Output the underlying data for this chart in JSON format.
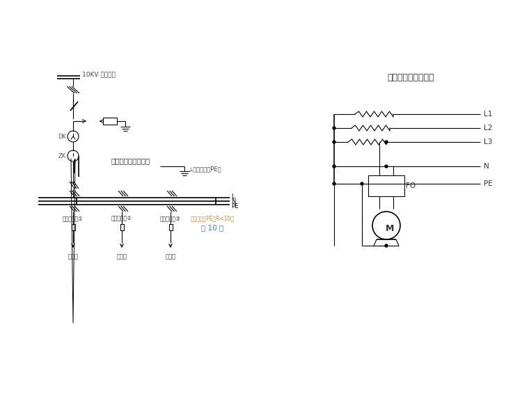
{
  "bg_color": "#ffffff",
  "line_color": "#000000",
  "orange_color": "#d4863c",
  "blue_color": "#4472c4",
  "title_right": "漏电保护器接线方式",
  "label_10kv": "10KV 电源进线",
  "label_zdpx": "总配电箱（一级箱）",
  "label_bhjl": "⊥保护接零（PE）",
  "label_ejpx1": "二级配电箱①",
  "label_ejpx2": "二级配电箱②",
  "label_sjpx3": "三级配电箱③",
  "label_sj1": "三级箱",
  "label_sj2": "三级箱",
  "label_sj3": "三级箱",
  "label_cfdj": "重复接地（PE）R<10欧",
  "label_page": "第 10 页",
  "label_L1": "L1",
  "label_L2": "L2",
  "label_L3": "L3",
  "label_N": "N",
  "label_PE": "PE",
  "label_FO": "FO",
  "label_M": "M",
  "label_DK": "DK",
  "label_ZK": "ZK",
  "label_L": "L",
  "label_N2": "N",
  "label_PE2": "PE"
}
